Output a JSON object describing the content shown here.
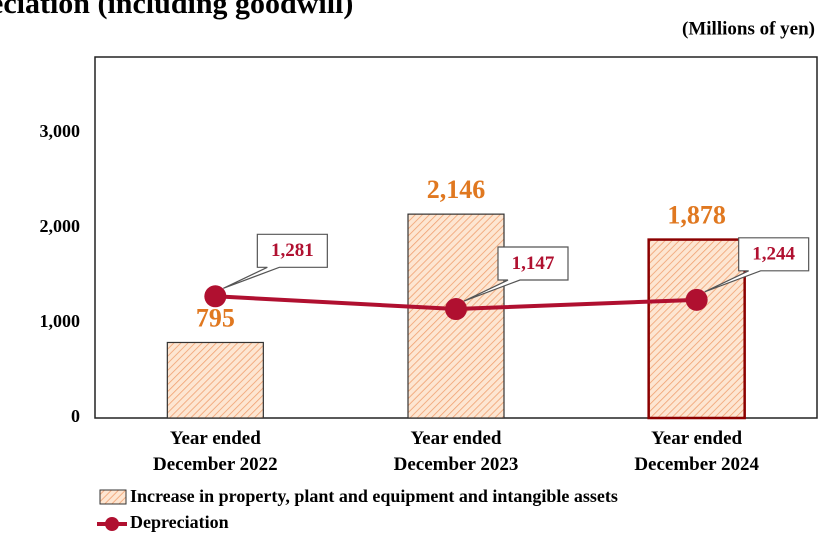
{
  "chart_data": {
    "type": "bar_line",
    "title": "eciation (including goodwill)",
    "unit_label": "(Millions of yen)",
    "categories": [
      "Year ended\nDecember 2022",
      "Year ended\nDecember 2023",
      "Year ended\nDecember 2024"
    ],
    "series": [
      {
        "name": "Increase in property, plant and equipment and intangible assets",
        "type": "bar",
        "color": "#f4a460",
        "values": [
          795,
          2146,
          1878
        ],
        "value_labels": [
          "795",
          "2,146",
          "1,878"
        ]
      },
      {
        "name": "Depreciation",
        "type": "line",
        "color": "#b01030",
        "values": [
          1281,
          1147,
          1244
        ],
        "value_labels": [
          "1,281",
          "1,147",
          "1,244"
        ]
      }
    ],
    "ylim": [
      0,
      3800
    ],
    "yticks": [
      0,
      {
        "value": 1000,
        "label": "1,000"
      },
      {
        "value": 2000,
        "label": "2,000"
      },
      {
        "value": 3000,
        "label": "3,000"
      }
    ],
    "grid": false
  }
}
